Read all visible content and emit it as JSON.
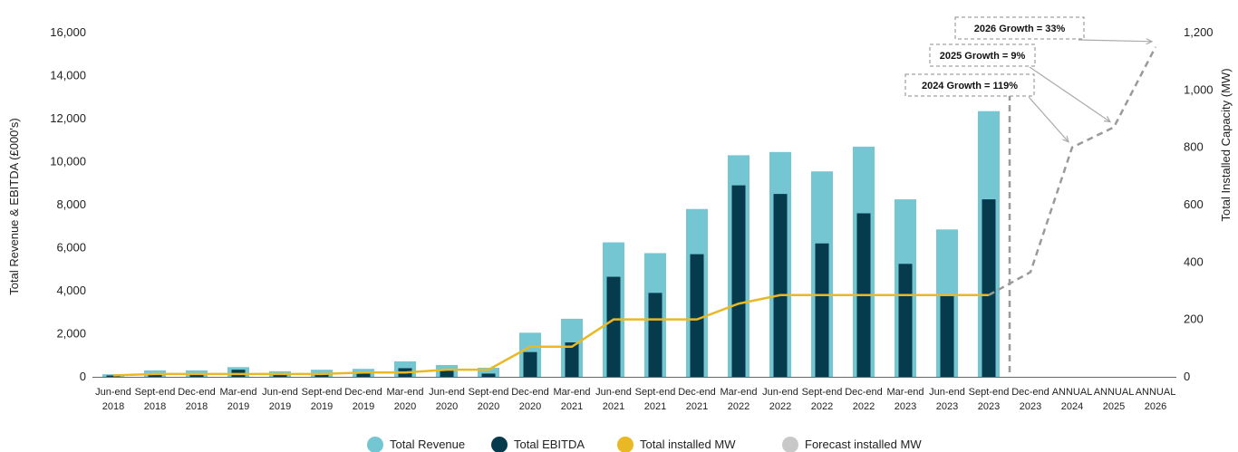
{
  "chart_data": {
    "type": "bar",
    "categories": [
      [
        "Jun-end",
        "2018"
      ],
      [
        "Sept-end",
        "2018"
      ],
      [
        "Dec-end",
        "2018"
      ],
      [
        "Mar-end",
        "2019"
      ],
      [
        "Jun-end",
        "2019"
      ],
      [
        "Sept-end",
        "2019"
      ],
      [
        "Dec-end",
        "2019"
      ],
      [
        "Mar-end",
        "2020"
      ],
      [
        "Jun-end",
        "2020"
      ],
      [
        "Sept-end",
        "2020"
      ],
      [
        "Dec-end",
        "2020"
      ],
      [
        "Mar-end",
        "2021"
      ],
      [
        "Jun-end",
        "2021"
      ],
      [
        "Sept-end",
        "2021"
      ],
      [
        "Dec-end",
        "2021"
      ],
      [
        "Mar-end",
        "2022"
      ],
      [
        "Jun-end",
        "2022"
      ],
      [
        "Sept-end",
        "2022"
      ],
      [
        "Dec-end",
        "2022"
      ],
      [
        "Mar-end",
        "2023"
      ],
      [
        "Jun-end",
        "2023"
      ],
      [
        "Sept-end",
        "2023"
      ],
      [
        "Dec-end",
        "2023"
      ],
      [
        "ANNUAL",
        "2024"
      ],
      [
        "ANNUAL",
        "2025"
      ],
      [
        "ANNUAL",
        "2026"
      ]
    ],
    "series": [
      {
        "name": "Total Revenue",
        "kind": "bar",
        "axis": "left",
        "color": "#74c6d3",
        "values": [
          120,
          300,
          300,
          450,
          260,
          330,
          370,
          720,
          550,
          420,
          2050,
          2700,
          6250,
          5750,
          7800,
          10300,
          10450,
          9550,
          10700,
          8250,
          6850,
          12350,
          null,
          null,
          null,
          null
        ]
      },
      {
        "name": "Total EBITDA",
        "kind": "bar",
        "axis": "left",
        "color": "#063b4e",
        "values": [
          60,
          150,
          150,
          330,
          90,
          130,
          200,
          400,
          300,
          150,
          1150,
          1600,
          4650,
          3900,
          5700,
          8900,
          8500,
          6200,
          7600,
          5250,
          3800,
          8250,
          null,
          null,
          null,
          null
        ]
      },
      {
        "name": "Total installed MW",
        "kind": "line",
        "axis": "right",
        "color": "#e8b924",
        "values": [
          5,
          10,
          10,
          10,
          10,
          10,
          15,
          15,
          25,
          25,
          105,
          105,
          200,
          200,
          200,
          255,
          285,
          285,
          285,
          285,
          285,
          285,
          null,
          null,
          null,
          null
        ]
      },
      {
        "name": "Forecast installed MW",
        "kind": "line-dashed",
        "axis": "right",
        "color": "#9a9a9a",
        "values": [
          null,
          null,
          null,
          null,
          null,
          null,
          null,
          null,
          null,
          null,
          null,
          null,
          null,
          null,
          null,
          null,
          null,
          null,
          null,
          null,
          null,
          285,
          365,
          800,
          870,
          1150
        ]
      }
    ],
    "ylabel": "Total Revenue & EBITDA (£000's)",
    "ylabel_right": "Total Installed Capacity (MW)",
    "ylim": [
      0,
      16000
    ],
    "ylim_right": [
      0,
      1200
    ],
    "yticks": [
      "0",
      "2,000",
      "4,000",
      "6,000",
      "8,000",
      "10,000",
      "12,000",
      "14,000",
      "16,000"
    ],
    "yticks_right": [
      "0",
      "200",
      "400",
      "600",
      "800",
      "1,000",
      "1,200"
    ],
    "annotations": [
      {
        "text": "2024 Growth = 119%",
        "category_index": 23
      },
      {
        "text": "2025 Growth = 9%",
        "category_index": 24
      },
      {
        "text": "2026 Growth = 33%",
        "category_index": 25
      }
    ],
    "forecast_divider_after_index": 21,
    "legend": {
      "position": "bottom",
      "items": [
        {
          "label": "Total Revenue",
          "color": "#74c6d3"
        },
        {
          "label": "Total EBITDA",
          "color": "#063b4e"
        },
        {
          "label": "Total installed MW",
          "color": "#e8b924"
        },
        {
          "label": "Forecast installed MW",
          "color": "#c8c8c8"
        }
      ]
    },
    "grid": false
  }
}
